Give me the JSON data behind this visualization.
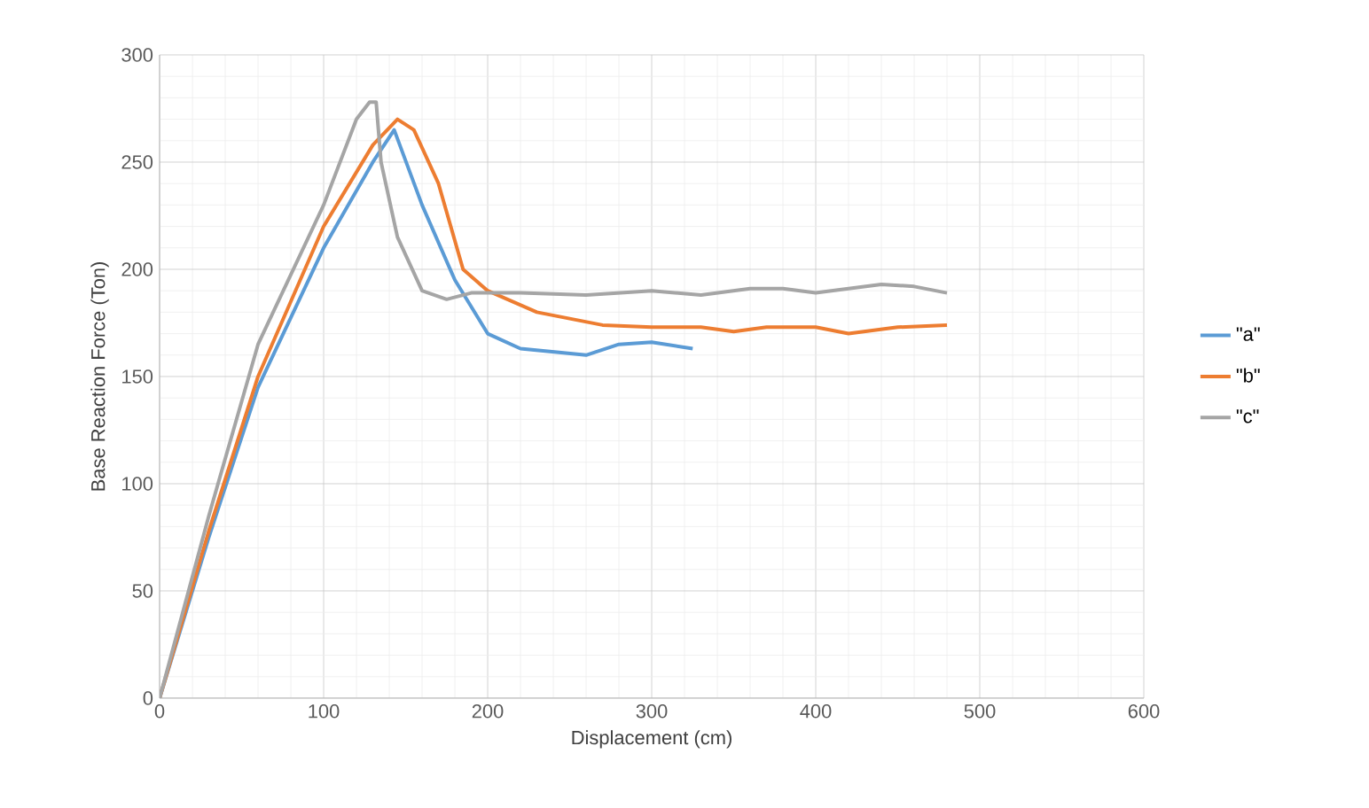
{
  "chart_data": {
    "type": "line",
    "xlabel": "Displacement (cm)",
    "ylabel": "Base Reaction Force (Ton)",
    "xlim": [
      0,
      600
    ],
    "xticks": [
      0,
      100,
      200,
      300,
      400,
      500,
      600
    ],
    "ylim": [
      0,
      300
    ],
    "yticks": [
      0,
      50,
      100,
      150,
      200,
      250,
      300
    ],
    "grid": true,
    "legend": "right",
    "marker": "none",
    "line_style": "solid",
    "series": [
      {
        "name": "\"a\"",
        "color": "#5b9bd5",
        "x": [
          0,
          30,
          60,
          100,
          130,
          143,
          160,
          180,
          200,
          220,
          260,
          280,
          300,
          325
        ],
        "values": [
          0,
          75,
          145,
          210,
          250,
          265,
          230,
          195,
          170,
          163,
          160,
          165,
          166,
          163
        ]
      },
      {
        "name": "\"b\"",
        "color": "#ed7d31",
        "x": [
          0,
          30,
          60,
          100,
          130,
          145,
          155,
          170,
          185,
          200,
          230,
          270,
          300,
          330,
          350,
          370,
          400,
          420,
          450,
          480
        ],
        "values": [
          0,
          78,
          150,
          220,
          258,
          270,
          265,
          240,
          200,
          190,
          180,
          174,
          173,
          173,
          171,
          173,
          173,
          170,
          173,
          174
        ]
      },
      {
        "name": "\"c\"",
        "color": "#a5a5a5",
        "x": [
          0,
          30,
          60,
          100,
          120,
          128,
          132,
          135,
          145,
          160,
          175,
          190,
          220,
          260,
          300,
          330,
          360,
          380,
          400,
          440,
          460,
          480
        ],
        "values": [
          0,
          85,
          165,
          230,
          270,
          278,
          278,
          250,
          215,
          190,
          186,
          189,
          189,
          188,
          190,
          188,
          191,
          191,
          189,
          193,
          192,
          189
        ]
      }
    ]
  }
}
